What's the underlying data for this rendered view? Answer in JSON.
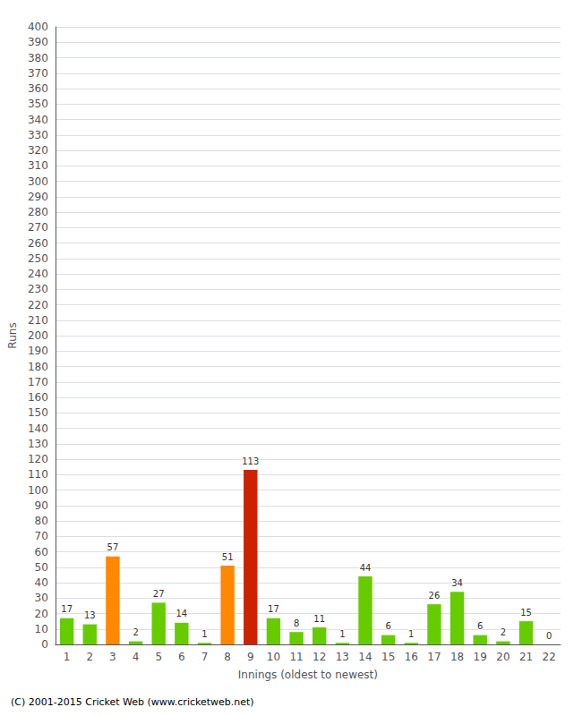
{
  "chart_data": {
    "type": "bar",
    "xlabel": "Innings (oldest to newest)",
    "ylabel": "Runs",
    "annotation": "(C) 2001-2015 Cricket Web (www.cricketweb.net)",
    "categories": [
      1,
      2,
      3,
      4,
      5,
      6,
      7,
      8,
      9,
      10,
      11,
      12,
      13,
      14,
      15,
      16,
      17,
      18,
      19,
      20,
      21,
      22
    ],
    "values": [
      17,
      13,
      57,
      2,
      27,
      14,
      1,
      51,
      113,
      17,
      8,
      11,
      1,
      44,
      6,
      1,
      26,
      34,
      6,
      2,
      15,
      0
    ],
    "colors": [
      "#66cc00",
      "#66cc00",
      "#ff8800",
      "#66cc00",
      "#66cc00",
      "#66cc00",
      "#66cc00",
      "#ff8800",
      "#cc2200",
      "#66cc00",
      "#66cc00",
      "#66cc00",
      "#66cc00",
      "#66cc00",
      "#66cc00",
      "#66cc00",
      "#66cc00",
      "#66cc00",
      "#66cc00",
      "#66cc00",
      "#66cc00",
      "#66cc00"
    ],
    "data_labels": true,
    "ylim": [
      0,
      400
    ],
    "yticks": [
      0,
      10,
      20,
      30,
      40,
      50,
      60,
      70,
      80,
      90,
      100,
      110,
      120,
      130,
      140,
      150,
      160,
      170,
      180,
      190,
      200,
      210,
      220,
      230,
      240,
      250,
      260,
      270,
      280,
      290,
      300,
      310,
      320,
      330,
      340,
      350,
      360,
      370,
      380,
      390,
      400
    ],
    "grid": true
  }
}
